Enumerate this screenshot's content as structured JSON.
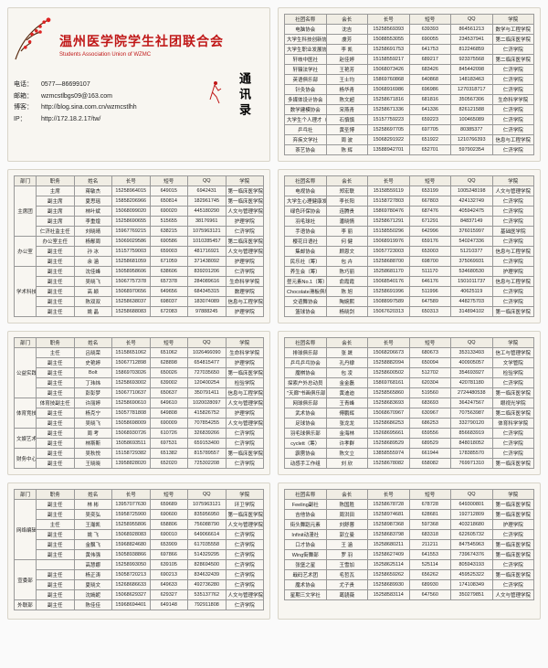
{
  "header": {
    "title": "温州医学院学生社团联合会",
    "subtitle": "Students Association Union  of WZMC",
    "badge": "通讯录",
    "contact": {
      "phone_label": "电话：",
      "phone": "0577—86699107",
      "email_label": "邮箱：",
      "email": "wzmcstlbgs09@163.com",
      "blog_label": "博客：",
      "blog": "http://blog.sina.com.cn/wzmcstlhh",
      "ip_label": "IP：",
      "ip": "http://172.18.2.17/tw/"
    }
  },
  "colors": {
    "accent": "#c01818",
    "card_bg": "#f8f6f1",
    "border": "#999"
  },
  "tablesA_head": [
    "社团名称",
    "会长",
    "长号",
    "短号",
    "QQ",
    "学院"
  ],
  "tablesB_head": [
    "部门",
    "职务",
    "姓名",
    "长号",
    "短号",
    "QQ",
    "学院"
  ],
  "card1_rows": [
    [
      "电脑协会",
      "沈吉",
      "15258569393",
      "639393",
      "864561213",
      "数学与工程学院"
    ],
    [
      "大学生科技创新协会",
      "虞芳",
      "15088553055",
      "690055",
      "234537941",
      "第二临床医学院"
    ],
    [
      "大学生职业发展协会",
      "李 凯",
      "15258691753",
      "641753",
      "812246859",
      "仁济学院"
    ],
    [
      "轩岐中医社",
      "赵佳婷",
      "15158559217",
      "689217",
      "923375568",
      "第二临床医学院"
    ],
    [
      "轩辕法学社",
      "王艳芳",
      "15068073426",
      "683426",
      "845442098",
      "仁济学院"
    ],
    [
      "英语俱乐部",
      "王士均",
      "15869760868",
      "640868",
      "148183463",
      "仁济学院"
    ],
    [
      "针灸协会",
      "杨华青",
      "15068916986",
      "696986",
      "1270318717",
      "仁济学院"
    ],
    [
      "多媒体设计协会",
      "陈文超",
      "15258671816",
      "681816",
      "350567306",
      "生命科学学院"
    ],
    [
      "数学建模协会",
      "宋燕青",
      "15258671336",
      "641336",
      "826121588",
      "仁济学院"
    ],
    [
      "大学生个人理才（筹）",
      "石慎慎",
      "15157759223",
      "659223",
      "100465089",
      "仁济学院"
    ],
    [
      "乒乓社",
      "黄圣博",
      "15258697705",
      "697705",
      "80385377",
      "仁济学院"
    ],
    [
      "弃疾文学社",
      "周 波",
      "15068291922",
      "651922",
      "1210766393",
      "信息与工程学院"
    ],
    [
      "茶艺协会",
      "陈 辉",
      "13588942701",
      "652701",
      "597902354",
      "仁济学院"
    ]
  ],
  "card2_rows": [
    [
      "主席团",
      "主席",
      "蒋敏杰",
      "15258964015",
      "649015",
      "6942431",
      "第一临床医学院"
    ],
    [
      "主席团",
      "副主席",
      "夏思瑶",
      "15858206966",
      "650814",
      "182961745",
      "第一临床医学院"
    ],
    [
      "主席团",
      "副主席",
      "林叶斌",
      "15068099020",
      "690020",
      "445180290",
      "人文与管理学院"
    ],
    [
      "主席团",
      "副主席",
      "李重煌",
      "15258690655",
      "515655",
      "38176961",
      "护理学院"
    ],
    [
      "主席团",
      "仁济社监主任",
      "刘晓晴",
      "15967769215",
      "638215",
      "1075963121",
      "仁济学院"
    ],
    [
      "办公室",
      "办公室主任",
      "杨鄢周",
      "15069029586",
      "690586",
      "1010285457",
      "第二临床医学院"
    ],
    [
      "办公室",
      "副主任",
      "孙 冰",
      "15157759003",
      "659003",
      "481716921",
      "人文与管理学院"
    ],
    [
      "办公室",
      "副主任",
      "余 涵",
      "15258681059",
      "671059",
      "371438092",
      "护理学院"
    ],
    [
      "学术科技中心",
      "副主任",
      "沈佳峰",
      "15058958606",
      "638606",
      "839201206",
      "仁济学院"
    ],
    [
      "学术科技中心",
      "副主任",
      "吴晓飞",
      "15067757378",
      "657378",
      "284089616",
      "生命科学学院"
    ],
    [
      "学术科技中心",
      "副主任",
      "高 颖",
      "15068970656",
      "649656",
      "684345315",
      "数理学院"
    ],
    [
      "学术科技中心",
      "副主任",
      "陈双双",
      "15258638037",
      "698037",
      "183074089",
      "信息与工程学院"
    ],
    [
      "学术科技中心",
      "副主任",
      "姚 晶",
      "15258688083",
      "672083",
      "97888245",
      "护理学院"
    ]
  ],
  "card3_rows": [
    [
      "电视协会",
      "郑宏联",
      "15158559119",
      "653199",
      "1005248198",
      "人文与管理学院"
    ],
    [
      "大学生心理健康发展协会",
      "李长阳",
      "15158727803",
      "667803",
      "424132749",
      "仁济学院"
    ],
    [
      "绿色环保协会",
      "连腾贵",
      "15869780476",
      "687476",
      "405942475",
      "仁济学院"
    ],
    [
      "羽毛球社",
      "潘晓情",
      "15258671291",
      "671291",
      "84837149",
      "仁济学院"
    ],
    [
      "手语协会",
      "李 丽",
      "15158550296",
      "642996",
      "376015997",
      "基础医学院"
    ],
    [
      "樱花日语社",
      "何 健",
      "15068919976",
      "659176",
      "540247336",
      "仁济学院"
    ],
    [
      "集邮协会",
      "顾恩文",
      "15057723003",
      "653003",
      "51210377",
      "信息与工程学院"
    ],
    [
      "民乐社（筹）",
      "包 卉",
      "15258688700",
      "698700",
      "375069931",
      "仁济学院"
    ],
    [
      "养生会（筹）",
      "陈巧丽",
      "15258681170",
      "511170",
      "534680530",
      "护理学院"
    ],
    [
      "昼元素No.1（筹）",
      "俞霞霞",
      "15068540176",
      "646176",
      "1501011737",
      "信息与工程学院"
    ],
    [
      "Chocolate滑板俱乐部",
      "陈 旭",
      "15258691996",
      "511996",
      "40625119",
      "仁济学院"
    ],
    [
      "交谊舞协会",
      "陶婉熙",
      "15088997589",
      "647589",
      "448275703",
      "仁济学院"
    ],
    [
      "篮球协会",
      "杨晓剑",
      "15067620313",
      "650313",
      "314894102",
      "第一临床医学院"
    ]
  ],
  "card4_rows": [
    [
      "公益实践中心",
      "主任",
      "吕晓荣",
      "15158651062",
      "651062",
      "1026466090",
      "生命科学学院"
    ],
    [
      "公益实践中心",
      "副主任",
      "史艳婷",
      "15067712898",
      "628898",
      "654815477",
      "护理学院"
    ],
    [
      "公益实践中心",
      "副主任",
      "Bolt",
      "15869703026",
      "650026",
      "727035650",
      "第一临床医学院"
    ],
    [
      "公益实践中心",
      "副主任",
      "丁玮炜",
      "15258693002",
      "639002",
      "120400254",
      "检验学院"
    ],
    [
      "公益实践中心",
      "副主任",
      "彭彭梦",
      "15067710637",
      "650637",
      "350791411",
      "信息与工程学院"
    ],
    [
      "体育竞技中心",
      "体育技副主任",
      "许丽婷",
      "15258690610",
      "649610",
      "1020028097",
      "人文与管理学院"
    ],
    [
      "体育竞技中心",
      "副主任",
      "杨克宁",
      "15057781808",
      "649808",
      "415826752",
      "护理学院"
    ],
    [
      "体育竞技中心",
      "副主任",
      "吴晓飞",
      "15058698009",
      "690009",
      "707854255",
      "人文与管理学院"
    ],
    [
      "文娱艺术中心",
      "副主任",
      "周 考",
      "15068930726",
      "610726",
      "326839266",
      "仁济学院"
    ],
    [
      "文娱艺术中心",
      "副主任",
      "林斯斯",
      "15058693511",
      "697531",
      "659153400",
      "仁济学院"
    ],
    [
      "财务中心",
      "副主任",
      "吴秋悦",
      "15158729382",
      "651382",
      "815789557",
      "第一临床医学院"
    ],
    [
      "财务中心",
      "副主任",
      "王晓晓",
      "13958828020",
      "652020",
      "725302208",
      "仁济学院"
    ]
  ],
  "card5_rows": [
    [
      "排球俱乐部",
      "张 晟",
      "15068206673",
      "680673",
      "353133493",
      "信工与管理学院"
    ],
    [
      "乒乓乒乓协会",
      "孔丹棣",
      "15258882094",
      "650094",
      "400905057",
      "文学管院"
    ],
    [
      "魔棋协会",
      "包 凌",
      "15258600502",
      "512702",
      "354693927",
      "检验学院"
    ],
    [
      "探索户外总动员",
      "金金磊",
      "15869768161",
      "620304",
      "420781180",
      "仁济学院"
    ],
    [
      "\"天廊\"书画俱乐部",
      "黄迪迪",
      "15258565860",
      "519560",
      "2724480538",
      "第一临床医学院"
    ],
    [
      "网球俱乐部",
      "王青峰",
      "15258683693",
      "683693",
      "364247567",
      "眼视光学院"
    ],
    [
      "武术协会",
      "傅鹏辉",
      "15068670967",
      "630967",
      "707563987",
      "第二临床医学院"
    ],
    [
      "足球协会",
      "张龙龙",
      "15258686253",
      "686253",
      "332790120",
      "体育科学学院"
    ],
    [
      "羽毛球俱乐部",
      "金海林",
      "15268695661",
      "659556",
      "856683919",
      "仁济学院"
    ],
    [
      "cyclett（筹）",
      "许孝群",
      "15258689529",
      "689529",
      "848018052",
      "仁济学院"
    ],
    [
      "霹雳协会",
      "陈文立",
      "13858555974",
      "661944",
      "178385570",
      "仁济学院"
    ],
    [
      "动感手工作组",
      "刘  欣",
      "15258678082",
      "658082",
      "769971310",
      "第一临床医学院"
    ]
  ],
  "card6_rows": [
    [
      "网络编辑中心",
      "副主任",
      "林 彬",
      "13957077630",
      "659689",
      "1075963121",
      "环卫学院"
    ],
    [
      "网络编辑中心",
      "副主任",
      "吴奕弘",
      "15958725900",
      "690600",
      "835956950",
      "第一临床医学院"
    ],
    [
      "网络编辑中心",
      "主任",
      "王瀚凯",
      "15258955806",
      "658806",
      "756088790",
      "人文与管理学院"
    ],
    [
      "网络编辑中心",
      "副主任",
      "姚 飞",
      "15068928083",
      "690010",
      "649066614",
      "仁济学院"
    ],
    [
      "网络编辑中心",
      "副主任",
      "金飘飞",
      "15968824680",
      "653909",
      "617035558",
      "仁济学院"
    ],
    [
      "网络编辑中心",
      "副主任",
      "黄伟强",
      "15058938866",
      "697866",
      "514329295",
      "仁济学院"
    ],
    [
      "宣委部",
      "",
      "高慧娜",
      "15258993050",
      "639105",
      "828694500",
      "仁济学院"
    ],
    [
      "宣委部",
      "副主任",
      "杨正涛",
      "15058720213",
      "690213",
      "834632439",
      "仁济学院"
    ],
    [
      "宣委部",
      "副主任",
      "夏晓文",
      "15268686633",
      "649633",
      "492736280",
      "仁济学院"
    ],
    [
      "宣委部",
      "副主任",
      "沈嫣妮",
      "15068629327",
      "629327",
      "535137762",
      "人文与管理学院"
    ],
    [
      "外联部",
      "副主任",
      "陈佳佳",
      "15968694401",
      "649148",
      "792911808",
      "仁济学院"
    ]
  ],
  "card7_rows": [
    [
      "Feeling副社",
      "陈国胜",
      "15258678728",
      "678728",
      "649300801",
      "第一临床医学院"
    ],
    [
      "吉他协会",
      "周洪田",
      "15258974681",
      "628681",
      "192712809",
      "第一临床医学院"
    ],
    [
      "街头舞蹈元素",
      "刘舒蓉",
      "15258987368",
      "597368",
      "403218680",
      "护理学院"
    ],
    [
      "Infinit动漫社",
      "郭立曼",
      "15258683798",
      "683318",
      "622605732",
      "仁济学院"
    ],
    [
      "口才协会",
      "王 涵",
      "15258680211",
      "211211",
      "847545963",
      "第一临床医学院"
    ],
    [
      "Wing街舞部",
      "罗 羽",
      "15258627409",
      "641553",
      "739674376",
      "第一临床医学院"
    ],
    [
      "张堡之星",
      "王雪加",
      "15258625114",
      "525114",
      "805943193",
      "仁济学院"
    ],
    [
      "戢码艺术团",
      "毛哲瓦",
      "15258659262",
      "656262",
      "459525322",
      "第一临床医学院"
    ],
    [
      "魔术协会",
      "尤子贵",
      "15258689930",
      "689930",
      "174108349",
      "仁济学院"
    ],
    [
      "星期三文学社",
      "葛骁薇",
      "15258583114",
      "647560",
      "350279851",
      "人文与管理学院"
    ]
  ]
}
